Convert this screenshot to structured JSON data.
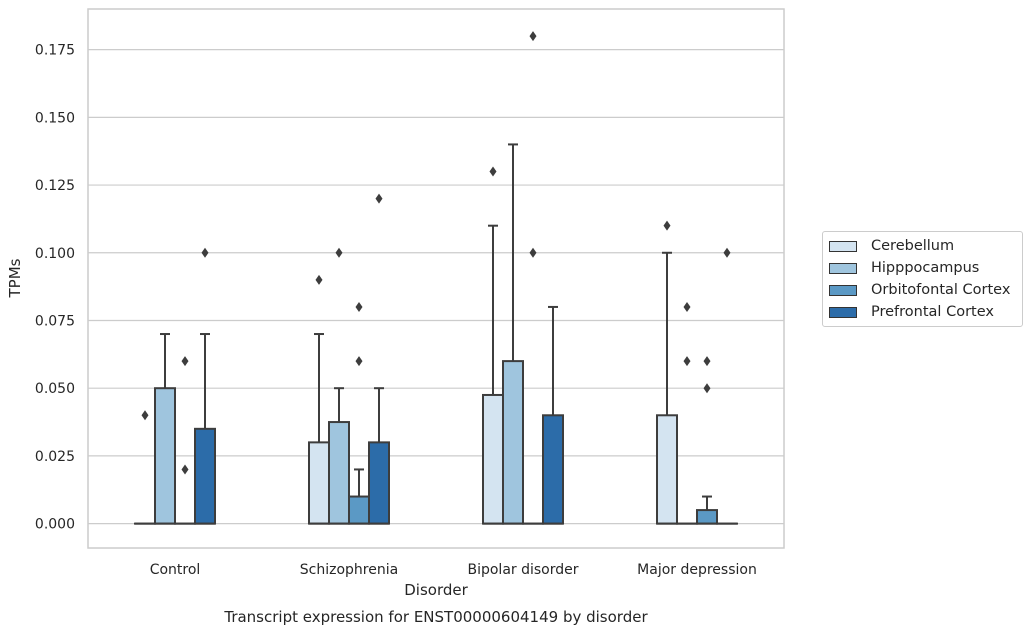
{
  "chart_data": {
    "type": "box",
    "xlabel": "Disorder",
    "ylabel": "TPMs",
    "caption": "Transcript expression for ENST00000604149 by disorder",
    "categories": [
      "Control",
      "Schizophrenia",
      "Bipolar disorder",
      "Major depression"
    ],
    "ylim": [
      -0.009,
      0.19
    ],
    "yticks": [
      "0.000",
      "0.025",
      "0.050",
      "0.075",
      "0.100",
      "0.125",
      "0.150",
      "0.175"
    ],
    "grid": "horizontal",
    "legend_position": "right",
    "series": [
      {
        "name": "Cerebellum",
        "color": "#d4e4f1",
        "boxes": [
          {
            "q1": 0,
            "median": 0,
            "q3": 0,
            "whisker_low": 0,
            "whisker_high": 0,
            "outliers": [
              0.04
            ]
          },
          {
            "q1": 0,
            "median": 0,
            "q3": 0.03,
            "whisker_low": 0,
            "whisker_high": 0.07,
            "outliers": [
              0.09
            ]
          },
          {
            "q1": 0,
            "median": 0,
            "q3": 0.0475,
            "whisker_low": 0,
            "whisker_high": 0.11,
            "outliers": [
              0.13
            ]
          },
          {
            "q1": 0,
            "median": 0,
            "q3": 0.04,
            "whisker_low": 0,
            "whisker_high": 0.1,
            "outliers": [
              0.11
            ]
          }
        ]
      },
      {
        "name": "Hipppocampus",
        "color": "#9fc5de",
        "boxes": [
          {
            "q1": 0,
            "median": 0,
            "q3": 0.05,
            "whisker_low": 0,
            "whisker_high": 0.07,
            "outliers": []
          },
          {
            "q1": 0,
            "median": 0,
            "q3": 0.0375,
            "whisker_low": 0,
            "whisker_high": 0.05,
            "outliers": [
              0.1
            ]
          },
          {
            "q1": 0,
            "median": 0,
            "q3": 0.06,
            "whisker_low": 0,
            "whisker_high": 0.14,
            "outliers": []
          },
          {
            "q1": 0,
            "median": 0,
            "q3": 0,
            "whisker_low": 0,
            "whisker_high": 0,
            "outliers": [
              0.08,
              0.06
            ]
          }
        ]
      },
      {
        "name": "Orbitofontal Cortex",
        "color": "#5b99c5",
        "boxes": [
          {
            "q1": 0,
            "median": 0,
            "q3": 0,
            "whisker_low": 0,
            "whisker_high": 0,
            "outliers": [
              0.06,
              0.02
            ]
          },
          {
            "q1": 0,
            "median": 0,
            "q3": 0.01,
            "whisker_low": 0,
            "whisker_high": 0.02,
            "outliers": [
              0.08,
              0.06
            ]
          },
          {
            "q1": 0,
            "median": 0,
            "q3": 0,
            "whisker_low": 0,
            "whisker_high": 0,
            "outliers": [
              0.18,
              0.1
            ]
          },
          {
            "q1": 0,
            "median": 0,
            "q3": 0.005,
            "whisker_low": 0,
            "whisker_high": 0.01,
            "outliers": [
              0.06,
              0.05
            ]
          }
        ]
      },
      {
        "name": "Prefrontal Cortex",
        "color": "#2c6ca9",
        "boxes": [
          {
            "q1": 0,
            "median": 0,
            "q3": 0.035,
            "whisker_low": 0,
            "whisker_high": 0.07,
            "outliers": [
              0.1
            ]
          },
          {
            "q1": 0,
            "median": 0,
            "q3": 0.03,
            "whisker_low": 0,
            "whisker_high": 0.05,
            "outliers": [
              0.12
            ]
          },
          {
            "q1": 0,
            "median": 0,
            "q3": 0.04,
            "whisker_low": 0,
            "whisker_high": 0.08,
            "outliers": []
          },
          {
            "q1": 0,
            "median": 0,
            "q3": 0,
            "whisker_low": 0,
            "whisker_high": 0,
            "outliers": [
              0.1
            ]
          }
        ]
      }
    ]
  }
}
